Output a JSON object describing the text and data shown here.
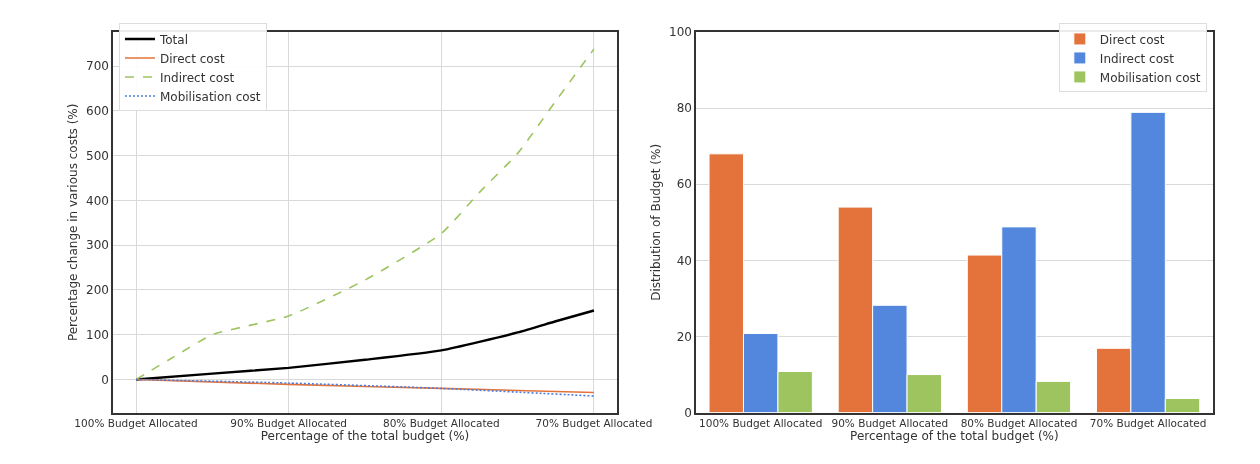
{
  "chart_data": [
    {
      "type": "line",
      "xlabel": "Percentage of the total budget (%)",
      "ylabel": "Percentage change in various costs (%)",
      "xlim": [
        101.5,
        68.5
      ],
      "xticks": [
        {
          "value": 100,
          "label": "100% Budget Allocated"
        },
        {
          "value": 90,
          "label": "90% Budget Allocated"
        },
        {
          "value": 80,
          "label": "80% Budget Allocated"
        },
        {
          "value": 70,
          "label": "70% Budget Allocated"
        }
      ],
      "ylim": [
        -74,
        776
      ],
      "yticks": [
        0,
        100,
        200,
        300,
        400,
        500,
        600,
        700
      ],
      "grid": true,
      "legend": "top left",
      "series": [
        {
          "name": "Total",
          "color": "#000000",
          "line_style": "solid",
          "x": [
            100,
            95,
            90,
            85,
            80,
            75,
            72.5,
            70
          ],
          "values": [
            0,
            13,
            26,
            44,
            65,
            105,
            130,
            154
          ]
        },
        {
          "name": "Direct cost",
          "color": "#e3733a",
          "line_style": "solid",
          "x": [
            100,
            90,
            80,
            70
          ],
          "values": [
            0,
            -11,
            -20,
            -29
          ]
        },
        {
          "name": "Indirect cost",
          "color": "#9dc45f",
          "line_style": "dashed",
          "x": [
            100,
            97.5,
            95,
            90,
            85,
            80,
            77.5,
            75,
            72.5,
            70
          ],
          "values": [
            0,
            51,
            100,
            142,
            222,
            326,
            418,
            505,
            622,
            738
          ]
        },
        {
          "name": "Mobilisation cost",
          "color": "#4a7fe0",
          "line_style": "dotted",
          "x": [
            100,
            90,
            80,
            70
          ],
          "values": [
            0,
            -8,
            -20,
            -37
          ]
        }
      ]
    },
    {
      "type": "bar",
      "xlabel": "Percentage of the total budget (%)",
      "ylabel": "Distribution of Budget (%)",
      "categories": [
        "100% Budget Allocated",
        "90% Budget Allocated",
        "80% Budget Allocated",
        "70% Budget Allocated"
      ],
      "ylim": [
        0,
        100
      ],
      "yticks": [
        0,
        20,
        40,
        60,
        80,
        100
      ],
      "grid": "y",
      "legend": "top right",
      "series": [
        {
          "name": "Direct cost",
          "color": "#e3733a",
          "values": [
            68,
            54,
            41.4,
            16.9
          ]
        },
        {
          "name": "Indirect cost",
          "color": "#5387dd",
          "values": [
            20.8,
            28.2,
            48.8,
            78.9
          ]
        },
        {
          "name": "Mobilisation cost",
          "color": "#9dc45f",
          "values": [
            10.8,
            10.0,
            8.2,
            3.7
          ]
        }
      ]
    }
  ]
}
